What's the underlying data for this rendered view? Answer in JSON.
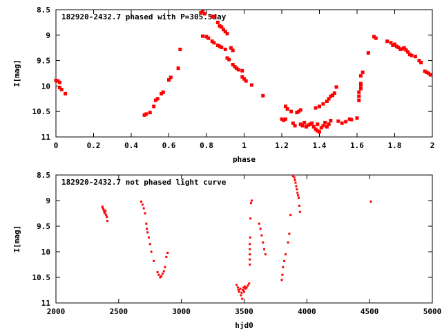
{
  "chart_data": [
    {
      "type": "scatter",
      "title": "182920-2432.7 phased with P=305.5day",
      "xlabel": "phase",
      "ylabel": "I[mag]",
      "xlim": [
        0,
        2
      ],
      "ylim": [
        8.5,
        11
      ],
      "y_inverted": true,
      "xticks": [
        "0",
        "0.2",
        "0.4",
        "0.6",
        "0.8",
        "1",
        "1.2",
        "1.4",
        "1.6",
        "1.8",
        "2"
      ],
      "xtick_values": [
        0,
        0.2,
        0.4,
        0.6,
        0.8,
        1,
        1.2,
        1.4,
        1.6,
        1.8,
        2
      ],
      "yticks": [
        "8.5",
        "9",
        "9.5",
        "10",
        "10.5",
        "11"
      ],
      "ytick_values": [
        8.5,
        9,
        9.5,
        10,
        10.5,
        11
      ],
      "marker_color": "#ff0000",
      "series": [
        {
          "points": [
            [
              0.0,
              9.89
            ],
            [
              0.01,
              9.9
            ],
            [
              0.02,
              9.93
            ],
            [
              0.02,
              10.03
            ],
            [
              0.03,
              10.07
            ],
            [
              0.05,
              10.15
            ],
            [
              0.47,
              10.57
            ],
            [
              0.48,
              10.55
            ],
            [
              0.5,
              10.52
            ],
            [
              0.52,
              10.4
            ],
            [
              0.53,
              10.28
            ],
            [
              0.54,
              10.25
            ],
            [
              0.56,
              10.15
            ],
            [
              0.57,
              10.12
            ],
            [
              0.6,
              9.88
            ],
            [
              0.61,
              9.83
            ],
            [
              0.65,
              9.65
            ],
            [
              0.66,
              9.28
            ],
            [
              0.77,
              8.56
            ],
            [
              0.78,
              8.54
            ],
            [
              0.79,
              8.58
            ],
            [
              0.78,
              9.02
            ],
            [
              0.8,
              9.03
            ],
            [
              0.81,
              9.06
            ],
            [
              0.83,
              8.64
            ],
            [
              0.84,
              8.63
            ],
            [
              0.83,
              9.12
            ],
            [
              0.84,
              9.15
            ],
            [
              0.86,
              9.2
            ],
            [
              0.87,
              9.22
            ],
            [
              0.88,
              9.24
            ],
            [
              0.86,
              8.75
            ],
            [
              0.87,
              8.82
            ],
            [
              0.88,
              8.84
            ],
            [
              0.89,
              8.89
            ],
            [
              0.9,
              8.93
            ],
            [
              0.91,
              8.97
            ],
            [
              0.9,
              9.28
            ],
            [
              0.91,
              9.45
            ],
            [
              0.92,
              9.48
            ],
            [
              0.93,
              9.25
            ],
            [
              0.94,
              9.3
            ],
            [
              0.94,
              9.58
            ],
            [
              0.95,
              9.62
            ],
            [
              0.96,
              9.65
            ],
            [
              0.97,
              9.68
            ],
            [
              0.99,
              9.7
            ],
            [
              0.99,
              9.82
            ],
            [
              1.0,
              9.86
            ],
            [
              1.01,
              9.9
            ],
            [
              1.04,
              9.98
            ],
            [
              1.1,
              10.19
            ],
            [
              1.2,
              10.65
            ],
            [
              1.21,
              10.67
            ],
            [
              1.22,
              10.4
            ],
            [
              1.23,
              10.45
            ],
            [
              1.25,
              10.5
            ],
            [
              1.22,
              10.65
            ],
            [
              1.26,
              10.73
            ],
            [
              1.27,
              10.78
            ],
            [
              1.28,
              10.52
            ],
            [
              1.29,
              10.5
            ],
            [
              1.3,
              10.47
            ],
            [
              1.3,
              10.75
            ],
            [
              1.31,
              10.78
            ],
            [
              1.32,
              10.72
            ],
            [
              1.33,
              10.8
            ],
            [
              1.34,
              10.77
            ],
            [
              1.35,
              10.75
            ],
            [
              1.36,
              10.73
            ],
            [
              1.37,
              10.8
            ],
            [
              1.38,
              10.85
            ],
            [
              1.39,
              10.88
            ],
            [
              1.4,
              10.9
            ],
            [
              1.41,
              10.82
            ],
            [
              1.39,
              10.75
            ],
            [
              1.42,
              10.78
            ],
            [
              1.43,
              10.72
            ],
            [
              1.44,
              10.8
            ],
            [
              1.45,
              10.75
            ],
            [
              1.46,
              10.68
            ],
            [
              1.38,
              10.43
            ],
            [
              1.4,
              10.4
            ],
            [
              1.42,
              10.35
            ],
            [
              1.44,
              10.3
            ],
            [
              1.45,
              10.25
            ],
            [
              1.46,
              10.2
            ],
            [
              1.47,
              10.18
            ],
            [
              1.48,
              10.14
            ],
            [
              1.49,
              10.02
            ],
            [
              1.5,
              10.69
            ],
            [
              1.52,
              10.73
            ],
            [
              1.54,
              10.7
            ],
            [
              1.56,
              10.65
            ],
            [
              1.57,
              10.66
            ],
            [
              1.6,
              10.63
            ],
            [
              1.61,
              10.28
            ],
            [
              1.61,
              10.2
            ],
            [
              1.61,
              10.12
            ],
            [
              1.62,
              10.05
            ],
            [
              1.62,
              9.98
            ],
            [
              1.62,
              9.95
            ],
            [
              1.62,
              9.8
            ],
            [
              1.63,
              9.73
            ],
            [
              1.66,
              9.35
            ],
            [
              1.69,
              9.03
            ],
            [
              1.7,
              9.06
            ],
            [
              1.76,
              9.12
            ],
            [
              1.78,
              9.15
            ],
            [
              1.79,
              9.2
            ],
            [
              1.8,
              9.18
            ],
            [
              1.81,
              9.22
            ],
            [
              1.82,
              9.24
            ],
            [
              1.83,
              9.28
            ],
            [
              1.84,
              9.27
            ],
            [
              1.85,
              9.25
            ],
            [
              1.86,
              9.29
            ],
            [
              1.87,
              9.33
            ],
            [
              1.88,
              9.38
            ],
            [
              1.89,
              9.4
            ],
            [
              1.91,
              9.42
            ],
            [
              1.93,
              9.5
            ],
            [
              1.94,
              9.54
            ],
            [
              1.96,
              9.71
            ],
            [
              1.97,
              9.73
            ],
            [
              1.98,
              9.75
            ],
            [
              1.99,
              9.78
            ]
          ]
        }
      ]
    },
    {
      "type": "scatter",
      "title": "182920-2432.7 not phased light curve",
      "xlabel": "hjd0",
      "ylabel": "I[mag]",
      "xlim": [
        2000,
        5000
      ],
      "ylim": [
        8.5,
        11
      ],
      "y_inverted": true,
      "xticks": [
        "2000",
        "2500",
        "3000",
        "3500",
        "4000",
        "4500",
        "5000"
      ],
      "xtick_values": [
        2000,
        2500,
        3000,
        3500,
        4000,
        4500,
        5000
      ],
      "yticks": [
        "8.5",
        "9",
        "9.5",
        "10",
        "10.5",
        "11"
      ],
      "ytick_values": [
        8.5,
        9,
        9.5,
        10,
        10.5,
        11
      ],
      "marker_color": "#ff0000",
      "series": [
        {
          "points": [
            [
              2370,
              9.12
            ],
            [
              2375,
              9.15
            ],
            [
              2380,
              9.18
            ],
            [
              2385,
              9.22
            ],
            [
              2390,
              9.25
            ],
            [
              2395,
              9.2
            ],
            [
              2400,
              9.28
            ],
            [
              2405,
              9.32
            ],
            [
              2410,
              9.4
            ],
            [
              2680,
              9.02
            ],
            [
              2690,
              9.08
            ],
            [
              2700,
              9.15
            ],
            [
              2710,
              9.25
            ],
            [
              2720,
              9.45
            ],
            [
              2725,
              9.55
            ],
            [
              2730,
              9.62
            ],
            [
              2740,
              9.72
            ],
            [
              2750,
              9.85
            ],
            [
              2760,
              10.0
            ],
            [
              2780,
              10.18
            ],
            [
              2810,
              10.4
            ],
            [
              2820,
              10.45
            ],
            [
              2830,
              10.5
            ],
            [
              2840,
              10.48
            ],
            [
              2850,
              10.43
            ],
            [
              2860,
              10.38
            ],
            [
              2870,
              10.3
            ],
            [
              2880,
              10.1
            ],
            [
              2890,
              10.02
            ],
            [
              3440,
              10.65
            ],
            [
              3450,
              10.7
            ],
            [
              3455,
              10.75
            ],
            [
              3460,
              10.78
            ],
            [
              3470,
              10.72
            ],
            [
              3475,
              10.85
            ],
            [
              3480,
              10.8
            ],
            [
              3485,
              10.92
            ],
            [
              3490,
              10.75
            ],
            [
              3495,
              10.7
            ],
            [
              3500,
              10.78
            ],
            [
              3505,
              10.68
            ],
            [
              3510,
              10.72
            ],
            [
              3520,
              10.7
            ],
            [
              3530,
              10.66
            ],
            [
              3540,
              10.62
            ],
            [
              3545,
              10.25
            ],
            [
              3545,
              10.15
            ],
            [
              3545,
              10.05
            ],
            [
              3545,
              9.95
            ],
            [
              3545,
              9.85
            ],
            [
              3548,
              9.72
            ],
            [
              3550,
              9.35
            ],
            [
              3555,
              9.05
            ],
            [
              3560,
              9.0
            ],
            [
              3620,
              9.45
            ],
            [
              3630,
              9.55
            ],
            [
              3640,
              9.68
            ],
            [
              3650,
              9.82
            ],
            [
              3660,
              9.95
            ],
            [
              3670,
              10.05
            ],
            [
              3800,
              10.55
            ],
            [
              3805,
              10.45
            ],
            [
              3810,
              10.3
            ],
            [
              3820,
              10.18
            ],
            [
              3830,
              10.05
            ],
            [
              3850,
              9.82
            ],
            [
              3860,
              9.65
            ],
            [
              3870,
              9.28
            ],
            [
              3890,
              8.52
            ],
            [
              3900,
              8.55
            ],
            [
              3905,
              8.6
            ],
            [
              3910,
              8.65
            ],
            [
              3915,
              8.72
            ],
            [
              3920,
              8.78
            ],
            [
              3925,
              8.85
            ],
            [
              3930,
              8.9
            ],
            [
              3935,
              8.95
            ],
            [
              3940,
              9.1
            ],
            [
              3945,
              9.22
            ],
            [
              4510,
              9.02
            ]
          ]
        }
      ]
    }
  ]
}
